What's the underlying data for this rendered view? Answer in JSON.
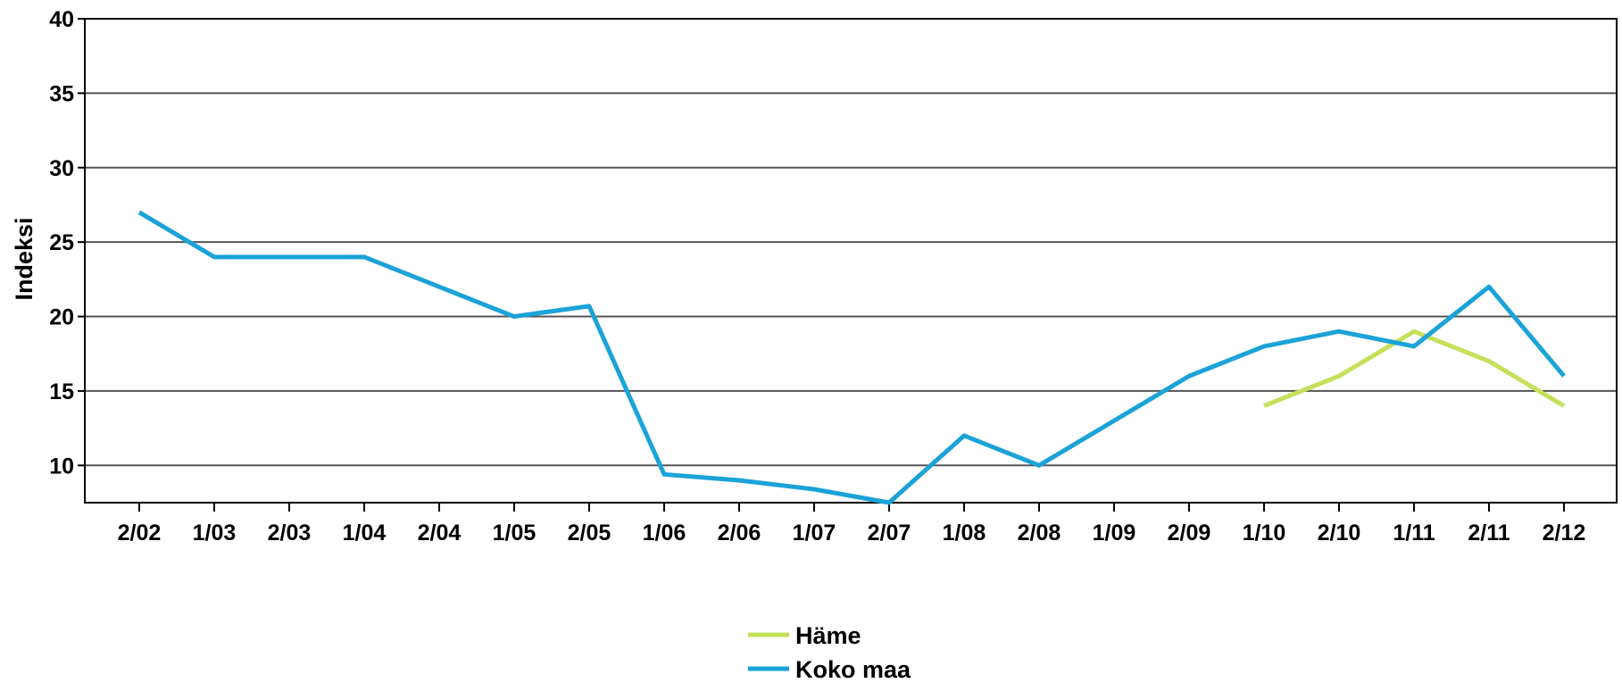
{
  "chart_data": {
    "type": "line",
    "title": "",
    "xlabel": "",
    "ylabel": "Indeksi",
    "ylim": [
      7.5,
      40
    ],
    "yticks": [
      10,
      15,
      20,
      25,
      30,
      35,
      40
    ],
    "ytick_labels": [
      "10",
      "15",
      "20",
      "25",
      "30",
      "35",
      "40"
    ],
    "grid": "horizontal",
    "legend_position": "bottom-center",
    "categories": [
      "2/02",
      "1/03",
      "2/03",
      "1/04",
      "2/04",
      "1/05",
      "2/05",
      "1/06",
      "2/06",
      "1/07",
      "2/07",
      "1/08",
      "2/08",
      "1/09",
      "2/09",
      "1/10",
      "2/10",
      "1/11",
      "2/11",
      "2/12"
    ],
    "series": [
      {
        "name": "Häme",
        "color": "#c5e05a",
        "values": [
          null,
          null,
          null,
          null,
          null,
          null,
          null,
          null,
          null,
          null,
          null,
          null,
          null,
          null,
          null,
          14,
          16,
          19,
          17,
          14
        ]
      },
      {
        "name": "Koko maa",
        "color": "#1ba3d8",
        "values": [
          27,
          24,
          24,
          24,
          22,
          20,
          20.7,
          9.4,
          9,
          8.4,
          7.5,
          12,
          10,
          13,
          16,
          18,
          19,
          18,
          22,
          16
        ]
      }
    ]
  }
}
